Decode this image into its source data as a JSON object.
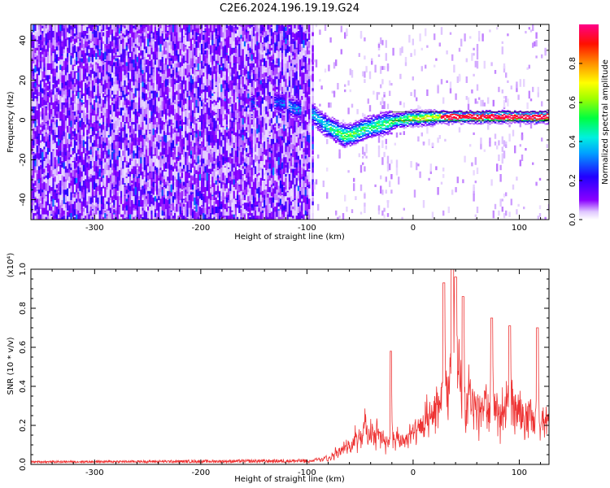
{
  "title": "C2E6.2024.196.19.19.G24",
  "colors": {
    "snr_line": "#ee3333",
    "background": "#ffffff",
    "axis": "#000000"
  },
  "chart_data": [
    {
      "type": "heatmap",
      "name": "spectrogram",
      "xlabel": "Height of straight line (km)",
      "ylabel": "Frequency (Hz)",
      "xlim": [
        -360,
        128
      ],
      "ylim": [
        -50,
        48
      ],
      "xticks": [
        -300,
        -200,
        -100,
        0,
        100
      ],
      "xtick_labels": [
        "-300",
        "-200",
        "-100",
        "0",
        "100"
      ],
      "yticks": [
        -40,
        -20,
        0,
        20,
        40
      ],
      "ytick_labels": [
        "-40",
        "-20",
        "0",
        "20",
        "40"
      ],
      "colorbar": {
        "label": "Normalized spectral amplitude",
        "range": [
          0,
          1
        ],
        "ticks": [
          0.0,
          0.2,
          0.4,
          0.6,
          0.8
        ],
        "tick_labels": [
          "0.0",
          "0.2",
          "0.4",
          "0.6",
          "0.8"
        ],
        "colormap": [
          "#ffffff",
          "#8a00ff",
          "#0033ff",
          "#00d0ff",
          "#00ff40",
          "#ffff00",
          "#ff8000",
          "#ff0000",
          "#ff0088"
        ]
      },
      "noise_region_x": [
        -360,
        -97
      ],
      "signal_trace": [
        {
          "x": -153,
          "y": 9,
          "amp": 0.28
        },
        {
          "x": -127,
          "y": 9,
          "amp": 0.32
        },
        {
          "x": -112,
          "y": 6,
          "amp": 0.35
        },
        {
          "x": -95,
          "y": 3,
          "amp": 0.4
        },
        {
          "x": -85,
          "y": -2,
          "amp": 0.45
        },
        {
          "x": -75,
          "y": -5,
          "amp": 0.55
        },
        {
          "x": -65,
          "y": -8,
          "amp": 0.6
        },
        {
          "x": -58,
          "y": -7,
          "amp": 0.6
        },
        {
          "x": -45,
          "y": -4,
          "amp": 0.55
        },
        {
          "x": -30,
          "y": -2,
          "amp": 0.55
        },
        {
          "x": -15,
          "y": 0,
          "amp": 0.6
        },
        {
          "x": 0,
          "y": 1,
          "amp": 0.7
        },
        {
          "x": 30,
          "y": 1.5,
          "amp": 0.85
        },
        {
          "x": 60,
          "y": 1.5,
          "amp": 0.9
        },
        {
          "x": 90,
          "y": 1.5,
          "amp": 0.92
        },
        {
          "x": 128,
          "y": 1.5,
          "amp": 0.92
        }
      ]
    },
    {
      "type": "line",
      "name": "snr",
      "xlabel": "Height of straight line (km)",
      "ylabel": "SNR (10 * v/v)",
      "scale_label": "(x10⁴)",
      "xlim": [
        -360,
        128
      ],
      "ylim": [
        0,
        1.0
      ],
      "xticks": [
        -300,
        -200,
        -100,
        0,
        100
      ],
      "xtick_labels": [
        "-300",
        "-200",
        "-100",
        "0",
        "100"
      ],
      "yticks": [
        0.0,
        0.2,
        0.4,
        0.6,
        0.8,
        1.0
      ],
      "ytick_labels": [
        "0.0",
        "0.2",
        "0.4",
        "0.6",
        "0.8",
        "1.0"
      ],
      "envelope": {
        "x": [
          -360,
          -200,
          -100,
          -80,
          -60,
          -45,
          -30,
          -20,
          -10,
          0,
          10,
          20,
          30,
          40,
          50,
          60,
          70,
          80,
          90,
          100,
          110,
          120,
          128
        ],
        "y": [
          0.01,
          0.015,
          0.02,
          0.06,
          0.15,
          0.28,
          0.22,
          0.18,
          0.2,
          0.25,
          0.3,
          0.45,
          0.6,
          0.72,
          0.5,
          0.45,
          0.5,
          0.38,
          0.48,
          0.42,
          0.38,
          0.35,
          0.3
        ]
      }
    }
  ]
}
